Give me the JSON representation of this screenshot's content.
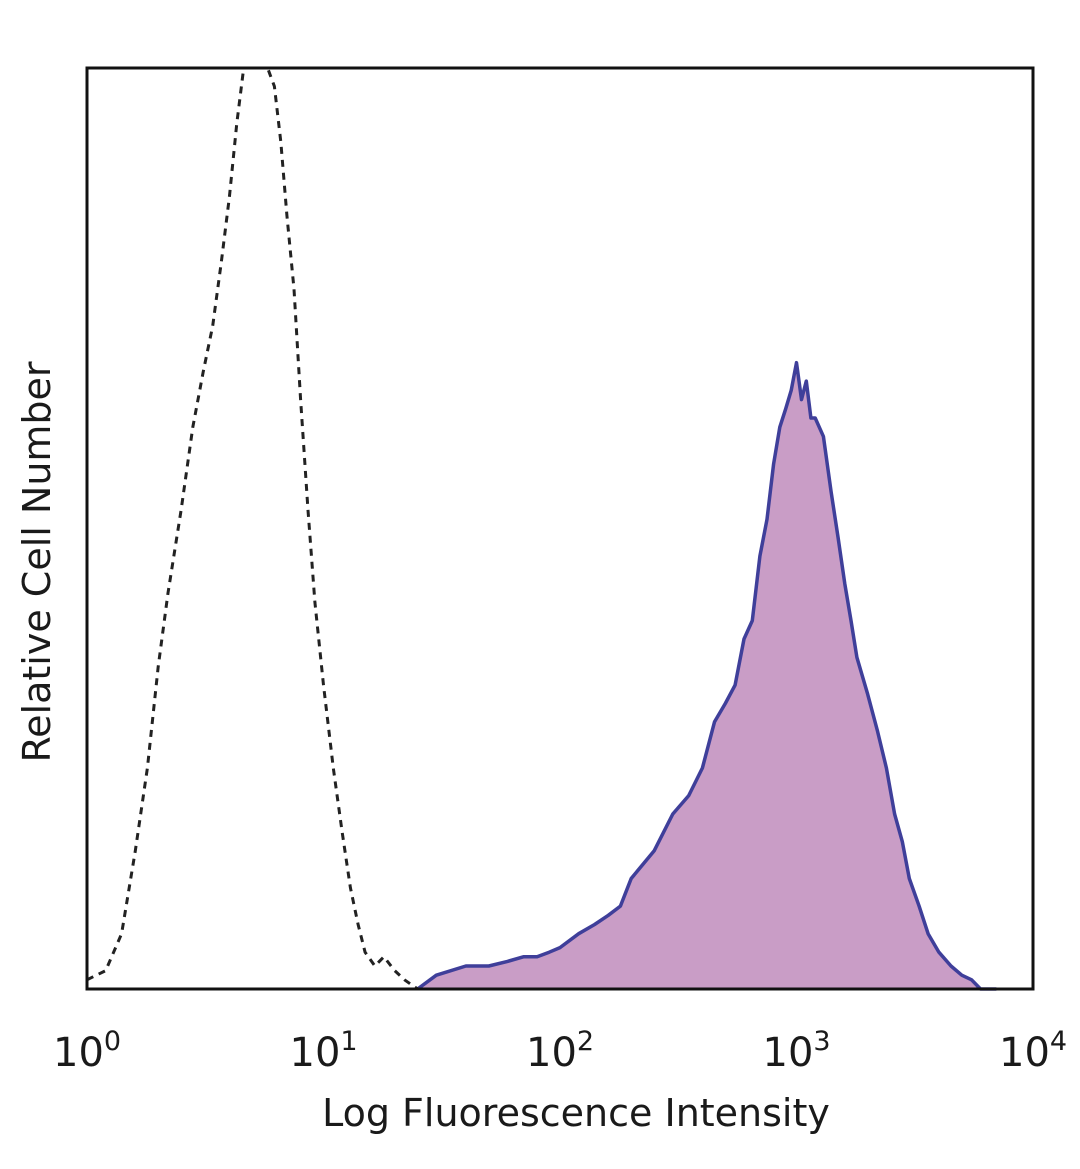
{
  "chart_data": {
    "type": "area",
    "xlabel": "Log Fluorescence Intensity",
    "ylabel": "Relative Cell Number",
    "xscale": "log",
    "xlim": [
      1,
      10000
    ],
    "ylim": [
      0,
      100
    ],
    "xticks": [
      {
        "base": "10",
        "exp": "0"
      },
      {
        "base": "10",
        "exp": "1"
      },
      {
        "base": "10",
        "exp": "2"
      },
      {
        "base": "10",
        "exp": "3"
      },
      {
        "base": "10",
        "exp": "4"
      }
    ],
    "grid": false,
    "legend": "none",
    "series": [
      {
        "style": "dashed-outline",
        "color": "#222222",
        "x": [
          1.0,
          1.2,
          1.4,
          1.6,
          1.8,
          2.0,
          2.2,
          2.5,
          2.8,
          3.1,
          3.4,
          3.7,
          4.0,
          4.3,
          4.6,
          4.9,
          5.2,
          5.5,
          5.8,
          6.2,
          6.6,
          7.0,
          7.5,
          8.0,
          8.6,
          9.2,
          10.0,
          11.0,
          12.0,
          13.0,
          14.0,
          15.0,
          16.5,
          18.0,
          20.0,
          22.0,
          25.0
        ],
        "y": [
          1,
          2,
          6,
          15,
          24,
          35,
          43,
          52,
          61,
          67,
          72,
          79,
          86,
          94,
          100,
          100,
          100,
          100,
          100,
          98,
          92,
          84,
          76,
          64,
          52,
          42,
          33,
          24,
          17,
          11,
          7,
          4,
          2.5,
          3.5,
          2,
          1,
          0
        ]
      },
      {
        "style": "filled",
        "color": "#3f3f9a",
        "fill": "#c99dc6",
        "x": [
          25,
          30,
          40,
          50,
          60,
          70,
          80,
          90,
          100,
          120,
          140,
          160,
          180,
          200,
          250,
          300,
          350,
          400,
          450,
          500,
          550,
          600,
          650,
          700,
          750,
          800,
          850,
          900,
          950,
          1000,
          1050,
          1100,
          1150,
          1200,
          1300,
          1400,
          1500,
          1600,
          1700,
          1800,
          2000,
          2200,
          2400,
          2600,
          2800,
          3000,
          3300,
          3600,
          4000,
          4500,
          5000,
          5500,
          6000,
          7000
        ],
        "y": [
          0,
          1.5,
          2.5,
          2.5,
          3,
          3.5,
          3.5,
          4,
          4.5,
          6,
          7,
          8,
          9,
          12,
          15,
          19,
          21,
          24,
          29,
          31,
          33,
          38,
          40,
          47,
          51,
          57,
          61,
          63,
          65,
          68,
          64,
          66,
          62,
          62,
          60,
          54,
          49,
          44,
          40,
          36,
          32,
          28,
          24,
          19,
          16,
          12,
          9,
          6,
          4,
          2.5,
          1.5,
          1,
          0,
          0
        ]
      }
    ]
  }
}
